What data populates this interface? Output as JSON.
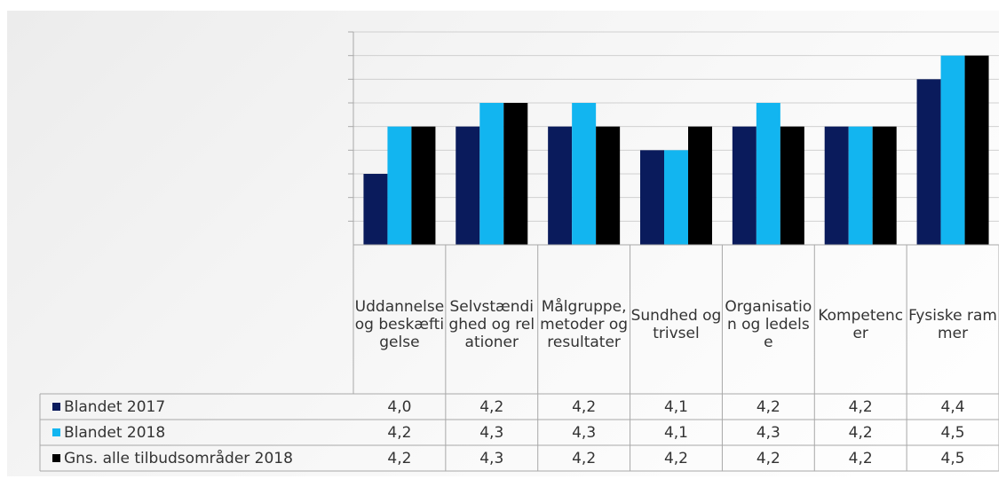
{
  "chart_data": {
    "type": "bar",
    "categories": [
      "Uddannelse og beskæftigelse",
      "Selvstændighed og relationer",
      "Målgruppe, metoder og resultater",
      "Sundhed og trivsel",
      "Organisation og ledelse",
      "Kompetencer",
      "Fysiske rammer"
    ],
    "series": [
      {
        "name": "Blandet 2017",
        "color": "#0a1b5c",
        "values": [
          "4,0",
          "4,2",
          "4,2",
          "4,1",
          "4,2",
          "4,2",
          "4,4"
        ]
      },
      {
        "name": "Blandet 2018",
        "color": "#12b5f0",
        "values": [
          "4,2",
          "4,3",
          "4,3",
          "4,1",
          "4,3",
          "4,2",
          "4,5"
        ]
      },
      {
        "name": "Gns. alle tilbudsområder 2018",
        "color": "#000000",
        "values": [
          "4,2",
          "4,3",
          "4,2",
          "4,2",
          "4,2",
          "4,2",
          "4,5"
        ]
      }
    ],
    "ylim": [
      3.7,
      4.6
    ],
    "grid": true,
    "legend": "data-table-left"
  }
}
